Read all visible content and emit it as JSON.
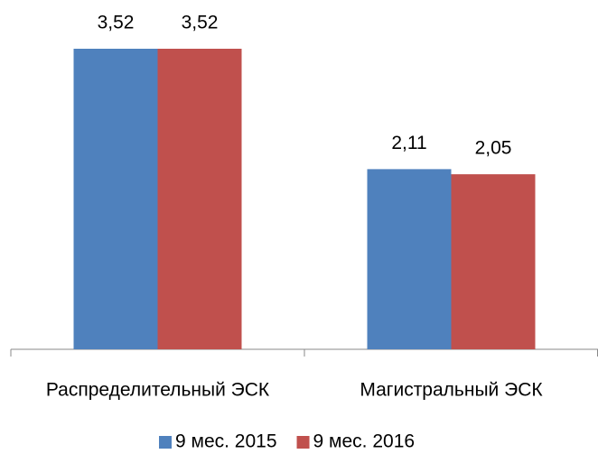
{
  "chart_data": {
    "type": "bar",
    "categories": [
      "Распределительный ЭСК",
      "Магистральный ЭСК"
    ],
    "series": [
      {
        "name": "9 мес. 2015",
        "color": "#4f81bd",
        "values": [
          3.52,
          2.11
        ],
        "value_labels": [
          "3,52",
          "2,11"
        ]
      },
      {
        "name": "9 мес. 2016",
        "color": "#c0504d",
        "values": [
          3.52,
          2.05
        ],
        "value_labels": [
          "3,52",
          "2,05"
        ]
      }
    ],
    "legend": "bottom"
  }
}
